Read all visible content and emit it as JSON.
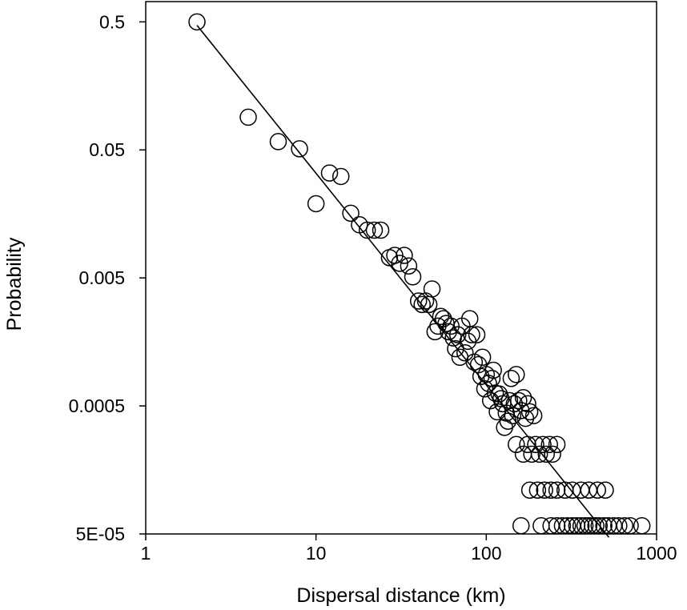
{
  "chart_data": {
    "type": "scatter",
    "title": "",
    "xlabel": "Dispersal distance (km)",
    "ylabel": "Probability",
    "x_scale": "log",
    "y_scale": "log",
    "xlim": [
      1,
      1000
    ],
    "ylim": [
      5e-05,
      0.72
    ],
    "x_ticks": [
      {
        "value": 1,
        "label": "1"
      },
      {
        "value": 10,
        "label": "10"
      },
      {
        "value": 100,
        "label": "100"
      },
      {
        "value": 1000,
        "label": "1000"
      }
    ],
    "y_ticks": [
      {
        "value": 0.5,
        "label": "0.5"
      },
      {
        "value": 0.05,
        "label": "0.05"
      },
      {
        "value": 0.005,
        "label": "0.005"
      },
      {
        "value": 0.0005,
        "label": "0.0005"
      },
      {
        "value": 5e-05,
        "label": "5E-05"
      }
    ],
    "grid": false,
    "marker": "open-circle",
    "points": [
      [
        2,
        0.5
      ],
      [
        4,
        0.09
      ],
      [
        6,
        0.058
      ],
      [
        8,
        0.051
      ],
      [
        10,
        0.019
      ],
      [
        12,
        0.033
      ],
      [
        14,
        0.031
      ],
      [
        16,
        0.016
      ],
      [
        18,
        0.013
      ],
      [
        20,
        0.0118
      ],
      [
        22,
        0.0118
      ],
      [
        24,
        0.0118
      ],
      [
        27,
        0.0072
      ],
      [
        29,
        0.0075
      ],
      [
        31,
        0.0065
      ],
      [
        33,
        0.0075
      ],
      [
        35,
        0.0062
      ],
      [
        37,
        0.0051
      ],
      [
        40,
        0.0033
      ],
      [
        42,
        0.0031
      ],
      [
        44,
        0.0033
      ],
      [
        46,
        0.0031
      ],
      [
        48,
        0.0041
      ],
      [
        50,
        0.0019
      ],
      [
        52,
        0.0021
      ],
      [
        54,
        0.0025
      ],
      [
        56,
        0.0024
      ],
      [
        58,
        0.0022
      ],
      [
        60,
        0.0019
      ],
      [
        62,
        0.0021
      ],
      [
        64,
        0.0017
      ],
      [
        66,
        0.0014
      ],
      [
        68,
        0.0018
      ],
      [
        70,
        0.0012
      ],
      [
        72,
        0.0021
      ],
      [
        75,
        0.0013
      ],
      [
        78,
        0.0016
      ],
      [
        80,
        0.0024
      ],
      [
        82,
        0.0018
      ],
      [
        85,
        0.0011
      ],
      [
        88,
        0.0018
      ],
      [
        90,
        0.00105
      ],
      [
        93,
        0.00085
      ],
      [
        95,
        0.0012
      ],
      [
        98,
        0.00068
      ],
      [
        100,
        0.00088
      ],
      [
        103,
        0.00075
      ],
      [
        106,
        0.00055
      ],
      [
        108,
        0.00082
      ],
      [
        110,
        0.00095
      ],
      [
        113,
        0.00063
      ],
      [
        116,
        0.00045
      ],
      [
        119,
        0.00062
      ],
      [
        122,
        0.00057
      ],
      [
        125,
        0.00052
      ],
      [
        128,
        0.00034
      ],
      [
        131,
        0.00044
      ],
      [
        134,
        0.00038
      ],
      [
        137,
        0.00055
      ],
      [
        140,
        0.00082
      ],
      [
        143,
        0.00042
      ],
      [
        146,
        0.00052
      ],
      [
        150,
        0.00088
      ],
      [
        155,
        0.00055
      ],
      [
        160,
        0.00046
      ],
      [
        165,
        0.00058
      ],
      [
        170,
        0.0004
      ],
      [
        175,
        0.00052
      ],
      [
        180,
        0.00045
      ],
      [
        190,
        0.00042
      ],
      [
        150,
        0.00025
      ],
      [
        165,
        0.00021
      ],
      [
        175,
        0.00025
      ],
      [
        185,
        0.00021
      ],
      [
        195,
        0.00025
      ],
      [
        205,
        0.00021
      ],
      [
        215,
        0.00025
      ],
      [
        225,
        0.00021
      ],
      [
        235,
        0.00025
      ],
      [
        245,
        0.00021
      ],
      [
        260,
        0.00025
      ],
      [
        180,
        0.00011
      ],
      [
        200,
        0.00011
      ],
      [
        220,
        0.00011
      ],
      [
        240,
        0.00011
      ],
      [
        260,
        0.00011
      ],
      [
        290,
        0.00011
      ],
      [
        320,
        0.00011
      ],
      [
        360,
        0.00011
      ],
      [
        400,
        0.00011
      ],
      [
        450,
        0.00011
      ],
      [
        500,
        0.00011
      ],
      [
        160,
        5.8e-05
      ],
      [
        210,
        5.8e-05
      ],
      [
        240,
        5.8e-05
      ],
      [
        260,
        5.8e-05
      ],
      [
        280,
        5.8e-05
      ],
      [
        300,
        5.8e-05
      ],
      [
        320,
        5.8e-05
      ],
      [
        340,
        5.8e-05
      ],
      [
        360,
        5.8e-05
      ],
      [
        380,
        5.8e-05
      ],
      [
        400,
        5.8e-05
      ],
      [
        420,
        5.8e-05
      ],
      [
        440,
        5.8e-05
      ],
      [
        460,
        5.8e-05
      ],
      [
        490,
        5.8e-05
      ],
      [
        520,
        5.8e-05
      ],
      [
        560,
        5.8e-05
      ],
      [
        600,
        5.8e-05
      ],
      [
        650,
        5.8e-05
      ],
      [
        700,
        5.8e-05
      ],
      [
        820,
        5.8e-05
      ]
    ],
    "fit_line": [
      [
        2,
        0.47
      ],
      [
        525,
        4.7e-05
      ]
    ]
  }
}
